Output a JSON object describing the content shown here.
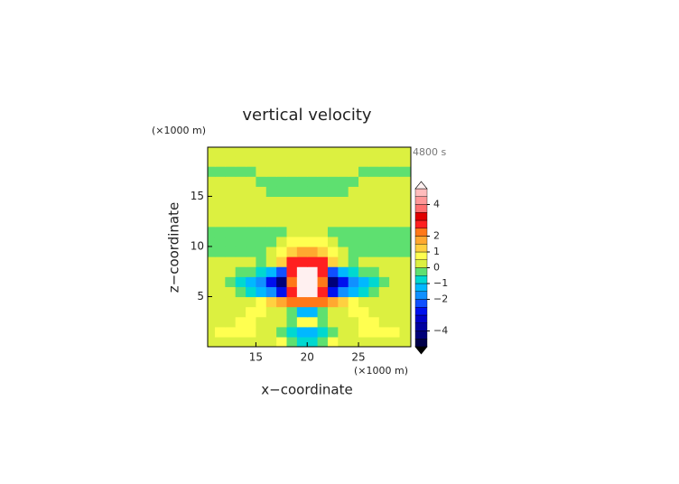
{
  "chart_data": {
    "type": "contour",
    "title": "vertical velocity",
    "x_unit": "(×1000 m)",
    "y_unit": "(×1000 m)",
    "time_label": "4800 s",
    "x_label": "x−coordinate",
    "y_label": "z−coordinate",
    "xlim": [
      10.3,
      30.1
    ],
    "ylim": [
      0,
      19.9
    ],
    "xticks": [
      15,
      20,
      25
    ],
    "yticks": [
      5,
      10,
      15
    ],
    "x": [
      10.5,
      11.5,
      12.5,
      13.5,
      14.5,
      15.5,
      16.5,
      17.5,
      18.5,
      19.5,
      20.5,
      21.5,
      22.5,
      23.5,
      24.5,
      25.5,
      26.5,
      27.5,
      28.5,
      29.5
    ],
    "y": [
      0.5,
      1.5,
      2.5,
      3.5,
      4.5,
      5.5,
      6.5,
      7.5,
      8.5,
      9.5,
      10.5,
      11.5,
      12.5,
      13.5,
      14.5,
      15.5,
      16.5,
      17.5,
      18.5,
      19.5
    ],
    "z": [
      [
        0.2,
        0.2,
        0.2,
        0.2,
        0.2,
        0.2,
        0.2,
        0.7,
        -0.2,
        -0.7,
        -0.7,
        -0.2,
        0.7,
        0.2,
        0.2,
        0.2,
        0.2,
        0.2,
        0.2,
        0.2
      ],
      [
        0.2,
        0.7,
        0.7,
        0.7,
        0.7,
        0.2,
        0.2,
        -0.2,
        -0.7,
        -1.2,
        -1.2,
        -0.7,
        -0.2,
        0.2,
        0.2,
        0.7,
        0.7,
        0.7,
        0.7,
        0.2
      ],
      [
        0.2,
        0.2,
        0.2,
        0.7,
        0.7,
        0.2,
        0.2,
        0.2,
        -0.2,
        0.7,
        0.7,
        -0.2,
        0.2,
        0.2,
        0.2,
        0.7,
        0.7,
        0.2,
        0.2,
        0.2
      ],
      [
        0.2,
        0.2,
        0.2,
        0.2,
        0.7,
        0.7,
        0.2,
        0.2,
        -0.2,
        -1.2,
        -1.2,
        -0.2,
        0.2,
        0.2,
        0.7,
        0.7,
        0.2,
        0.2,
        0.2,
        0.2
      ],
      [
        0.2,
        0.2,
        0.2,
        0.2,
        0.2,
        0.7,
        1.2,
        1.7,
        2.2,
        2.2,
        2.2,
        2.2,
        1.7,
        1.2,
        0.7,
        0.2,
        0.2,
        0.2,
        0.2,
        0.2
      ],
      [
        0.2,
        0.2,
        0.2,
        -0.2,
        -0.7,
        -1.2,
        -1.7,
        -2.7,
        2.7,
        5.5,
        5.5,
        2.7,
        -2.7,
        -1.7,
        -1.2,
        -0.7,
        -0.2,
        0.2,
        0.2,
        0.2
      ],
      [
        0.2,
        0.2,
        -0.2,
        -0.7,
        -1.2,
        -1.7,
        -2.7,
        -4.2,
        2.2,
        5.5,
        5.5,
        2.2,
        -4.2,
        -2.7,
        -1.7,
        -1.2,
        -0.7,
        -0.2,
        0.2,
        0.2
      ],
      [
        0.2,
        0.2,
        0.2,
        -0.2,
        -0.2,
        -0.7,
        -1.2,
        -2.2,
        2.7,
        5.5,
        5.5,
        2.7,
        -2.2,
        -1.2,
        -0.7,
        -0.2,
        -0.2,
        0.2,
        0.2,
        0.2
      ],
      [
        0.2,
        0.2,
        0.2,
        0.2,
        0.2,
        -0.2,
        0.2,
        1.2,
        2.7,
        2.7,
        2.7,
        2.7,
        1.2,
        0.2,
        -0.2,
        0.2,
        0.2,
        0.2,
        0.2,
        0.2
      ],
      [
        -0.2,
        -0.2,
        -0.2,
        -0.2,
        -0.2,
        -0.2,
        0.2,
        0.7,
        1.2,
        1.7,
        1.7,
        1.2,
        0.7,
        0.2,
        -0.2,
        -0.2,
        -0.2,
        -0.2,
        -0.2,
        -0.2
      ],
      [
        -0.2,
        -0.2,
        -0.2,
        -0.2,
        -0.2,
        -0.2,
        -0.2,
        0.2,
        0.7,
        0.7,
        0.7,
        0.7,
        0.2,
        -0.2,
        -0.2,
        -0.2,
        -0.2,
        -0.2,
        -0.2,
        -0.2
      ],
      [
        -0.2,
        -0.2,
        -0.2,
        -0.2,
        -0.2,
        -0.2,
        -0.2,
        -0.2,
        0.2,
        0.2,
        0.2,
        0.2,
        -0.2,
        -0.2,
        -0.2,
        -0.2,
        -0.2,
        -0.2,
        -0.2,
        -0.2
      ],
      [
        0.2,
        0.2,
        0.2,
        0.2,
        0.2,
        0.2,
        0.2,
        0.2,
        0.2,
        0.2,
        0.2,
        0.2,
        0.2,
        0.2,
        0.2,
        0.2,
        0.2,
        0.2,
        0.2,
        0.2
      ],
      [
        0.2,
        0.2,
        0.2,
        0.2,
        0.2,
        0.2,
        0.2,
        0.2,
        0.2,
        0.2,
        0.2,
        0.2,
        0.2,
        0.2,
        0.2,
        0.2,
        0.2,
        0.2,
        0.2,
        0.2
      ],
      [
        0.2,
        0.2,
        0.2,
        0.2,
        0.2,
        0.2,
        0.2,
        0.2,
        0.2,
        0.2,
        0.2,
        0.2,
        0.2,
        0.2,
        0.2,
        0.2,
        0.2,
        0.2,
        0.2,
        0.2
      ],
      [
        0.2,
        0.2,
        0.2,
        0.2,
        0.2,
        0.2,
        -0.2,
        -0.2,
        -0.2,
        -0.2,
        -0.2,
        -0.2,
        -0.2,
        -0.2,
        0.2,
        0.2,
        0.2,
        0.2,
        0.2,
        0.2
      ],
      [
        0.2,
        0.2,
        0.2,
        0.2,
        0.2,
        -0.2,
        -0.2,
        -0.2,
        -0.2,
        -0.2,
        -0.2,
        -0.2,
        -0.2,
        -0.2,
        -0.2,
        0.2,
        0.2,
        0.2,
        0.2,
        0.2
      ],
      [
        -0.2,
        -0.2,
        -0.2,
        -0.2,
        -0.2,
        0.2,
        0.2,
        0.2,
        0.2,
        0.2,
        0.2,
        0.2,
        0.2,
        0.2,
        0.2,
        -0.2,
        -0.2,
        -0.2,
        -0.2,
        -0.2
      ],
      [
        0.2,
        0.2,
        0.2,
        0.2,
        0.2,
        0.2,
        0.2,
        0.2,
        0.2,
        0.2,
        0.2,
        0.2,
        0.2,
        0.2,
        0.2,
        0.2,
        0.2,
        0.2,
        0.2,
        0.2
      ],
      [
        0.2,
        0.2,
        0.2,
        0.2,
        0.2,
        0.2,
        0.2,
        0.2,
        0.2,
        0.2,
        0.2,
        0.2,
        0.2,
        0.2,
        0.2,
        0.2,
        0.2,
        0.2,
        0.2,
        0.2
      ]
    ],
    "colorbar": {
      "levels": [
        -5,
        -4.5,
        -4,
        -3.5,
        -3,
        -2.5,
        -2,
        -1.5,
        -1,
        -0.5,
        0,
        0.5,
        1,
        1.5,
        2,
        2.5,
        3,
        3.5,
        4,
        4.5,
        5
      ],
      "colors": [
        "#00004a",
        "#000078",
        "#0000a0",
        "#0000c8",
        "#0010ee",
        "#1050ff",
        "#1090ff",
        "#00b8ff",
        "#00d8d0",
        "#5ee070",
        "#dcf040",
        "#ffff50",
        "#ffd040",
        "#ffa830",
        "#ff7818",
        "#ff2020",
        "#e00000",
        "#ff7070",
        "#ff9898",
        "#ffbcbc"
      ],
      "under_color": "#000000",
      "over_color": "#fff0f0",
      "ticks": [
        {
          "value": -4,
          "label": "−4"
        },
        {
          "value": -2,
          "label": "−2"
        },
        {
          "value": -1,
          "label": "−1"
        },
        0,
        1,
        2,
        4
      ]
    }
  }
}
